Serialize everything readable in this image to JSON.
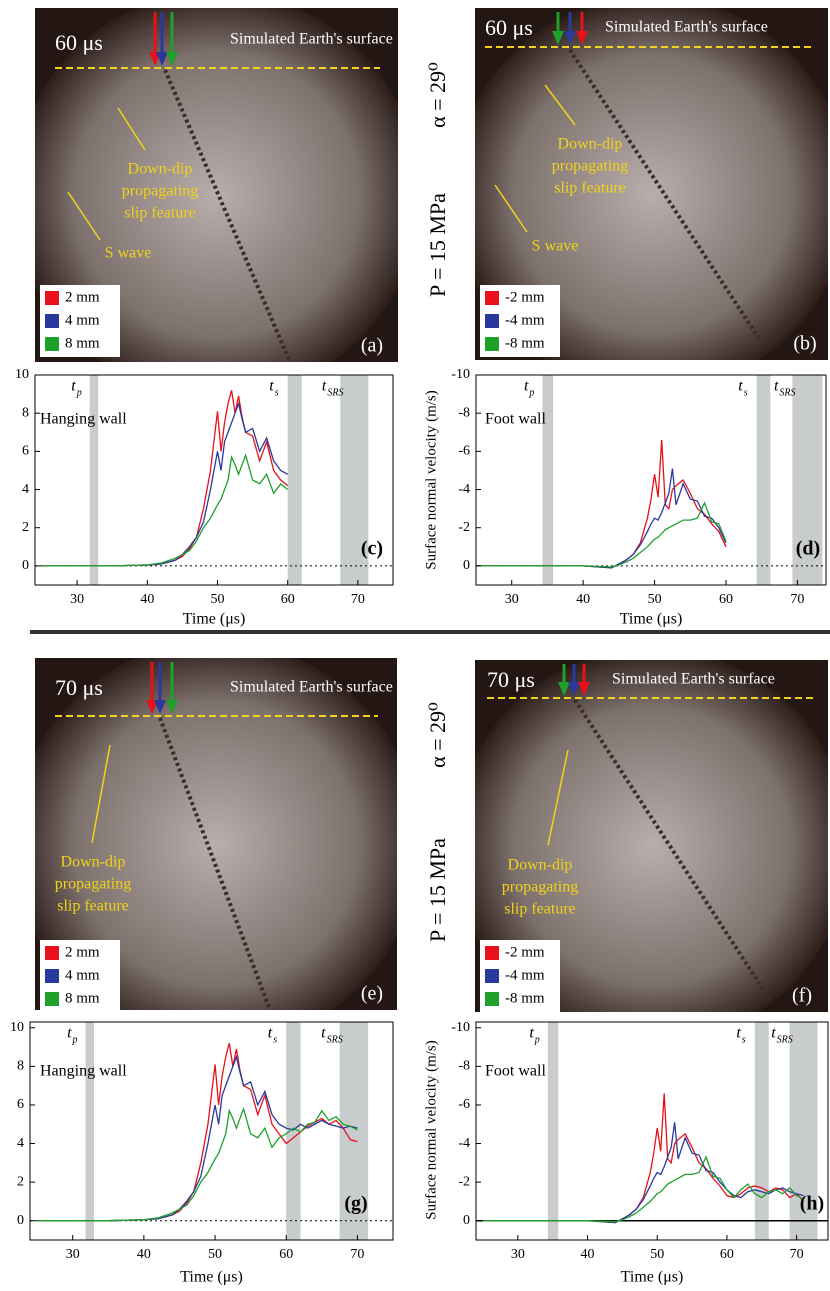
{
  "conditions": [
    [
      "P = 15 MPa",
      "α = 29⁰"
    ],
    [
      "P = 15 MPa",
      "α = 29⁰"
    ]
  ],
  "photos": [
    {
      "time": "60 μs",
      "surface": "Simulated Earth's surface",
      "annotations": [
        [
          "Down-dip",
          "propagating",
          "slip feature"
        ],
        [
          "S wave"
        ]
      ],
      "label": "(a)"
    },
    {
      "time": "60 μs",
      "surface": "Simulated Earth's surface",
      "annotations": [
        [
          "Down-dip",
          "propagating",
          "slip feature"
        ],
        [
          "S wave"
        ]
      ],
      "label": "(b)"
    },
    {
      "time": "70 μs",
      "surface": "Simulated Earth's surface",
      "annotations": [
        [
          "Down-dip",
          "propagating",
          "slip feature"
        ]
      ],
      "label": "(e)"
    },
    {
      "time": "70 μs",
      "surface": "Simulated Earth's surface",
      "annotations": [
        [
          "Down-dip",
          "propagating",
          "slip feature"
        ]
      ],
      "label": "(f)"
    }
  ],
  "chart_data": [
    {
      "type": "line",
      "wall_label": "Hanging wall",
      "panel_label": "(c)",
      "xlabel": "Time (μs)",
      "xlim": [
        24,
        75
      ],
      "ylim": [
        -1,
        10
      ],
      "xticks": [
        30,
        40,
        50,
        60,
        70
      ],
      "yticks": [
        0,
        2,
        4,
        6,
        8,
        10
      ],
      "reference_line": {
        "y": 0,
        "style": "dotted"
      },
      "bands": [
        {
          "label": "t",
          "sub": "p",
          "range": [
            31.8,
            33
          ]
        },
        {
          "label": "t",
          "sub": "s",
          "range": [
            60,
            62
          ]
        },
        {
          "label": "t",
          "sub": "SRS",
          "range": [
            67.5,
            71.5
          ]
        }
      ],
      "x": [
        25,
        30,
        35,
        40,
        42,
        44,
        45,
        46,
        47,
        48,
        49,
        50,
        50.5,
        51,
        51.5,
        52,
        52.5,
        53,
        53.5,
        54,
        55,
        56,
        57,
        58,
        59,
        60
      ],
      "series": [
        {
          "name": "2 mm",
          "color": "#e8101a",
          "values": [
            0,
            0,
            0,
            0.05,
            0.1,
            0.3,
            0.5,
            0.9,
            1.5,
            3,
            5,
            8.1,
            6,
            7.5,
            8.5,
            9.2,
            8,
            8.9,
            7.8,
            7,
            6.8,
            5.5,
            6.5,
            5,
            4.5,
            4.2
          ]
        },
        {
          "name": "4 mm",
          "color": "#2a3a9c",
          "values": [
            0,
            0,
            0,
            0.05,
            0.1,
            0.3,
            0.6,
            1,
            1.5,
            2.3,
            4,
            6,
            5,
            6.5,
            7,
            7.5,
            8,
            8.5,
            7.7,
            7,
            7.2,
            6,
            6.7,
            5.5,
            5,
            4.8
          ]
        },
        {
          "name": "8 mm",
          "color": "#1ea02a",
          "values": [
            0,
            0,
            0,
            0.05,
            0.15,
            0.4,
            0.6,
            0.8,
            1.3,
            2,
            2.5,
            3.2,
            3.5,
            4,
            4.5,
            5.7,
            5.3,
            4.8,
            5.3,
            5.8,
            4.5,
            4.3,
            4.8,
            3.8,
            4.3,
            4
          ]
        }
      ]
    },
    {
      "type": "line",
      "wall_label": "Foot wall",
      "panel_label": "(d)",
      "xlabel": "Time (μs)",
      "ylabel": "Surface normal velocity (m/s)",
      "xlim": [
        25,
        74
      ],
      "ylim": [
        1,
        -10
      ],
      "xticks": [
        30,
        40,
        50,
        60,
        70
      ],
      "yticks": [
        0,
        -2,
        -4,
        -6,
        -8,
        -10
      ],
      "reference_line": {
        "y": 0,
        "style": "dotted"
      },
      "bands": [
        {
          "label": "t",
          "sub": "p",
          "range": [
            34.3,
            35.8
          ]
        },
        {
          "label": "t",
          "sub": "s",
          "range": [
            64.3,
            66.2
          ]
        },
        {
          "label": "t",
          "sub": "SRS",
          "range": [
            69.3,
            73.5
          ]
        }
      ],
      "x": [
        25,
        30,
        35,
        40,
        44,
        45,
        46,
        47,
        48,
        49,
        49.5,
        50,
        50.5,
        51,
        51.5,
        52,
        52.5,
        53,
        54,
        55,
        56,
        57,
        58,
        59,
        60
      ],
      "series": [
        {
          "name": "-2 mm",
          "color": "#e8101a",
          "values": [
            0,
            0,
            0,
            0,
            0.1,
            -0.1,
            -0.3,
            -0.6,
            -1.2,
            -2.5,
            -3.5,
            -4.8,
            -3.6,
            -6.6,
            -3.2,
            -3,
            -4,
            -4.2,
            -4.5,
            -3.8,
            -3,
            -2.7,
            -2.2,
            -1.8,
            -1
          ]
        },
        {
          "name": "-4 mm",
          "color": "#2a3a9c",
          "values": [
            0,
            0,
            0,
            0,
            0.1,
            -0.1,
            -0.3,
            -0.6,
            -1.1,
            -1.8,
            -2.2,
            -2.5,
            -2.4,
            -2.8,
            -3.3,
            -3.8,
            -5.1,
            -3.2,
            -4.3,
            -3.5,
            -3.4,
            -2.6,
            -2.5,
            -2,
            -1.2
          ]
        },
        {
          "name": "-8 mm",
          "color": "#1ea02a",
          "values": [
            0,
            0,
            0,
            0,
            0.05,
            -0.05,
            -0.2,
            -0.4,
            -0.7,
            -1,
            -1.2,
            -1.4,
            -1.5,
            -1.7,
            -1.9,
            -2,
            -2.1,
            -2.2,
            -2.4,
            -2.4,
            -2.5,
            -3.3,
            -2.3,
            -2.2,
            -1.3
          ]
        }
      ]
    },
    {
      "type": "line",
      "wall_label": "Hanging wall",
      "panel_label": "(g)",
      "xlabel": "Time (μs)",
      "xlim": [
        24,
        75
      ],
      "ylim": [
        -1,
        10.3
      ],
      "xticks": [
        30,
        40,
        50,
        60,
        70
      ],
      "yticks": [
        0,
        2,
        4,
        6,
        8,
        10
      ],
      "reference_line": {
        "y": 0,
        "style": "dotted"
      },
      "bands": [
        {
          "label": "t",
          "sub": "p",
          "range": [
            31.8,
            33
          ]
        },
        {
          "label": "t",
          "sub": "s",
          "range": [
            60,
            62
          ]
        },
        {
          "label": "t",
          "sub": "SRS",
          "range": [
            67.5,
            71.5
          ]
        }
      ],
      "x": [
        25,
        30,
        35,
        40,
        42,
        44,
        45,
        46,
        47,
        48,
        49,
        50,
        50.5,
        51,
        51.5,
        52,
        52.5,
        53,
        53.5,
        54,
        55,
        56,
        57,
        58,
        59,
        60,
        61,
        62,
        63,
        64,
        65,
        66,
        67,
        68,
        69,
        70
      ],
      "series": [
        {
          "name": "2 mm",
          "color": "#e8101a",
          "values": [
            0,
            0,
            0,
            0.05,
            0.1,
            0.3,
            0.5,
            0.9,
            1.5,
            3,
            5,
            8.1,
            6,
            7.5,
            8.5,
            9.2,
            8,
            8.9,
            7.8,
            7,
            6.8,
            5.5,
            6.5,
            5,
            4.5,
            4,
            4.3,
            4.6,
            4.9,
            5.1,
            5.3,
            5,
            5.2,
            4.8,
            4.2,
            4.1
          ]
        },
        {
          "name": "4 mm",
          "color": "#2a3a9c",
          "values": [
            0,
            0,
            0,
            0.05,
            0.1,
            0.3,
            0.6,
            1,
            1.5,
            2.3,
            4,
            6,
            5,
            6.5,
            7,
            7.5,
            8,
            8.5,
            7.7,
            7,
            7.2,
            6,
            6.7,
            5.5,
            5,
            4.8,
            4.7,
            5,
            4.8,
            5,
            5.2,
            5,
            4.9,
            4.8,
            4.9,
            4.8
          ]
        },
        {
          "name": "8 mm",
          "color": "#1ea02a",
          "values": [
            0,
            0,
            0,
            0.05,
            0.15,
            0.4,
            0.6,
            0.8,
            1.3,
            2,
            2.5,
            3.2,
            3.5,
            4,
            4.5,
            5.7,
            5.3,
            4.8,
            5.3,
            5.8,
            4.5,
            4.3,
            4.8,
            3.8,
            4.3,
            4.5,
            4.8,
            4.6,
            5,
            5.1,
            5.7,
            5.2,
            5.4,
            5,
            4.9,
            4.7
          ]
        }
      ]
    },
    {
      "type": "line",
      "wall_label": "Foot wall",
      "panel_label": "(h)",
      "xlabel": "Time (μs)",
      "ylabel": "Surface normal velocity (m/s)",
      "xlim": [
        24,
        74.5
      ],
      "ylim": [
        1,
        -10.3
      ],
      "xticks": [
        30,
        40,
        50,
        60,
        70
      ],
      "yticks": [
        0,
        -2,
        -4,
        -6,
        -8,
        -10
      ],
      "reference_line": {
        "y": 0,
        "style": "solid"
      },
      "bands": [
        {
          "label": "t",
          "sub": "p",
          "range": [
            34.3,
            35.8
          ]
        },
        {
          "label": "t",
          "sub": "s",
          "range": [
            64,
            66
          ]
        },
        {
          "label": "t",
          "sub": "SRS",
          "range": [
            69,
            73
          ]
        }
      ],
      "x": [
        25,
        30,
        35,
        40,
        44,
        45,
        46,
        47,
        48,
        49,
        49.5,
        50,
        50.5,
        51,
        51.5,
        52,
        52.5,
        53,
        54,
        55,
        56,
        57,
        58,
        59,
        60,
        61,
        62,
        63,
        64,
        65,
        66,
        67,
        68,
        69,
        70,
        71
      ],
      "series": [
        {
          "name": "-2 mm",
          "color": "#e8101a",
          "values": [
            0,
            0,
            0,
            0,
            0.1,
            -0.1,
            -0.3,
            -0.6,
            -1.2,
            -2.5,
            -3.5,
            -4.8,
            -3.6,
            -6.6,
            -3.2,
            -3,
            -4,
            -4.2,
            -4.5,
            -3.8,
            -3,
            -2.7,
            -2.2,
            -1.8,
            -1.3,
            -1.2,
            -1.4,
            -1.7,
            -1.8,
            -1.7,
            -1.5,
            -1.7,
            -1.6,
            -1.2,
            -1.4,
            -1
          ]
        },
        {
          "name": "-4 mm",
          "color": "#2a3a9c",
          "values": [
            0,
            0,
            0,
            0,
            0.1,
            -0.1,
            -0.3,
            -0.6,
            -1.1,
            -1.8,
            -2.2,
            -2.5,
            -2.4,
            -2.8,
            -3.3,
            -3.8,
            -5.1,
            -3.2,
            -4.3,
            -3.5,
            -3.4,
            -2.6,
            -2.5,
            -2,
            -1.6,
            -1.3,
            -1.2,
            -1.5,
            -1.6,
            -1.5,
            -1.4,
            -1.6,
            -1.7,
            -1.5,
            -1.4,
            -1.3
          ]
        },
        {
          "name": "-8 mm",
          "color": "#1ea02a",
          "values": [
            0,
            0,
            0,
            0,
            0.05,
            -0.05,
            -0.2,
            -0.4,
            -0.7,
            -1,
            -1.2,
            -1.4,
            -1.5,
            -1.7,
            -1.9,
            -2,
            -2.1,
            -2.2,
            -2.4,
            -2.4,
            -2.5,
            -3.3,
            -2.3,
            -2.2,
            -1.6,
            -1.2,
            -1.6,
            -1.9,
            -1.4,
            -1.2,
            -1.5,
            -1.6,
            -1.4,
            -1.7,
            -1.3,
            -1.1
          ]
        }
      ]
    }
  ]
}
